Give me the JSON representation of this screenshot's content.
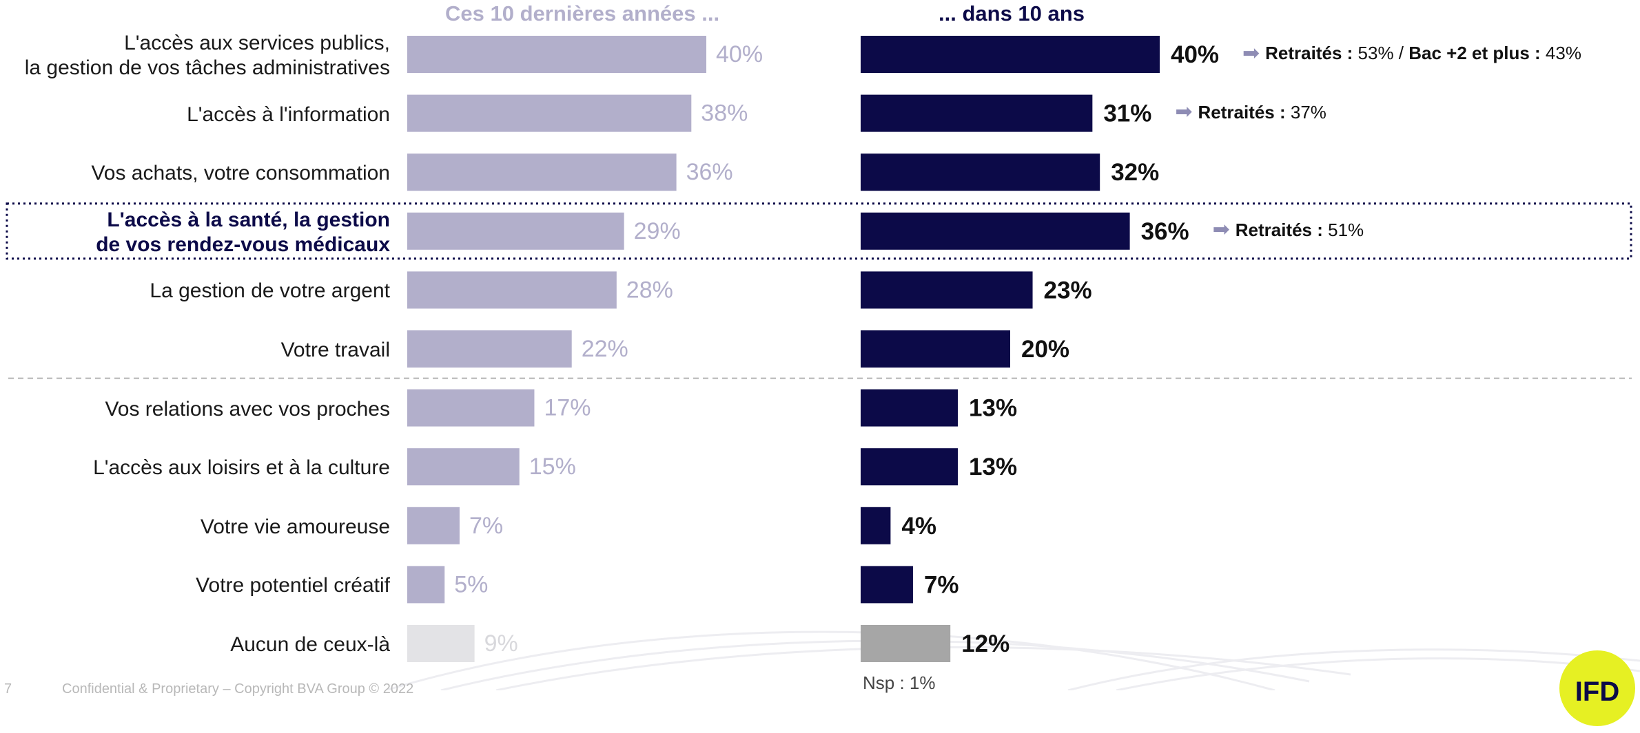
{
  "colors": {
    "past_bar": "#b2afcb",
    "past_label": "#b2afcb",
    "future_bar": "#0c0a48",
    "none_past_bar": "#e3e3e6",
    "none_future_bar": "#a6a6a6",
    "highlight_text": "#0c0a48"
  },
  "chart_data": {
    "type": "bar",
    "orientation": "horizontal",
    "categories": [
      [
        "L'accès aux services publics,",
        "la gestion de vos tâches administratives"
      ],
      [
        "L'accès à l'information"
      ],
      [
        "Vos achats, votre consommation"
      ],
      [
        "L'accès à la santé, la gestion",
        "de vos rendez-vous médicaux"
      ],
      [
        "La gestion de votre argent"
      ],
      [
        "Votre travail"
      ],
      [
        "Vos relations avec vos proches"
      ],
      [
        "L'accès aux loisirs et à la culture"
      ],
      [
        "Votre vie amoureuse"
      ],
      [
        "Votre potentiel créatif"
      ],
      [
        "Aucun de ceux-là"
      ]
    ],
    "highlighted_index": 3,
    "separator_after_index": 5,
    "series": [
      {
        "name": "Ces 10 dernières années ...",
        "values": [
          40,
          38,
          36,
          29,
          28,
          22,
          17,
          15,
          7,
          5,
          9
        ]
      },
      {
        "name": "... dans 10 ans",
        "values": [
          40,
          31,
          32,
          36,
          23,
          20,
          13,
          13,
          4,
          7,
          12
        ]
      }
    ],
    "value_suffix": "%",
    "grid": false,
    "annotations": [
      {
        "index": 0,
        "parts": [
          {
            "bold": "Retraités :",
            "text": " 53% / "
          },
          {
            "bold": "Bac +2 et plus :",
            "text": " 43%"
          }
        ]
      },
      {
        "index": 1,
        "parts": [
          {
            "bold": "Retraités :",
            "text": " 37%"
          }
        ]
      },
      {
        "index": 3,
        "parts": [
          {
            "bold": "Retraités :",
            "text": " 51%"
          }
        ]
      }
    ],
    "nsp": "Nsp : 1%"
  },
  "footer": {
    "page_number": "7",
    "confidential": "Confidential & Proprietary – Copyright BVA Group © 2022"
  },
  "logo": {
    "text": "IFD"
  }
}
